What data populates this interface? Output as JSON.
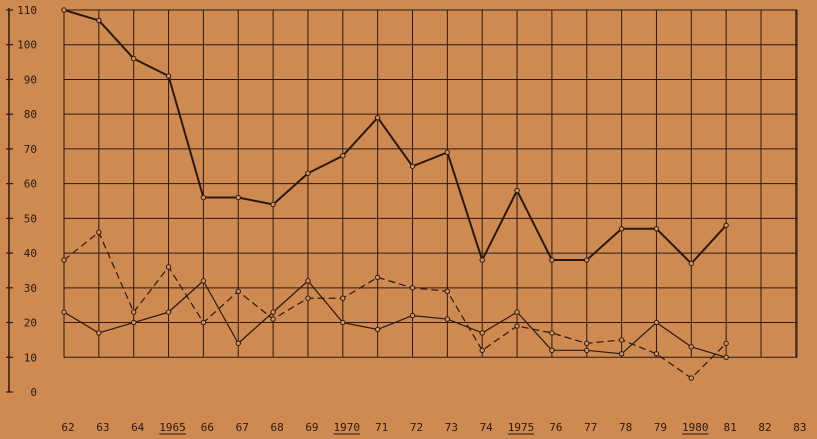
{
  "chart_data": {
    "type": "line",
    "title": "",
    "xlabel": "",
    "ylabel": "",
    "ylim": [
      0,
      110
    ],
    "grid": true,
    "x_tick_labels": [
      "62",
      "63",
      "64",
      "1965",
      "66",
      "67",
      "68",
      "69",
      "1970",
      "71",
      "72",
      "73",
      "74",
      "1975",
      "76",
      "77",
      "78",
      "79",
      "1980",
      "81",
      "82",
      "83"
    ],
    "x_tick_underlined": [
      "1965",
      "1970",
      "1975",
      "1980"
    ],
    "y_tick_labels": [
      "0",
      "10",
      "20",
      "30",
      "40",
      "50",
      "60",
      "70",
      "80",
      "90",
      "100",
      "110"
    ],
    "x": [
      "62",
      "63",
      "64",
      "1965",
      "66",
      "67",
      "68",
      "69",
      "1970",
      "71",
      "72",
      "73",
      "74",
      "1975",
      "76",
      "77",
      "78",
      "79",
      "1980",
      "81"
    ],
    "series": [
      {
        "style": "solid-bold",
        "values": [
          110,
          107,
          96,
          91,
          56,
          56,
          54,
          63,
          68,
          79,
          65,
          69,
          38,
          58,
          38,
          38,
          47,
          47,
          37,
          48
        ]
      },
      {
        "style": "dashed",
        "values": [
          38,
          46,
          23,
          36,
          20,
          29,
          21,
          27,
          27,
          33,
          30,
          29,
          12,
          19,
          17,
          14,
          15,
          11,
          4,
          14
        ]
      },
      {
        "style": "solid-thin",
        "values": [
          23,
          17,
          20,
          23,
          32,
          14,
          23,
          32,
          20,
          18,
          22,
          21,
          17,
          23,
          12,
          12,
          11,
          20,
          13,
          10
        ]
      }
    ],
    "colors": {
      "background": "#cf8a52",
      "ink": "#2a1a10"
    }
  }
}
